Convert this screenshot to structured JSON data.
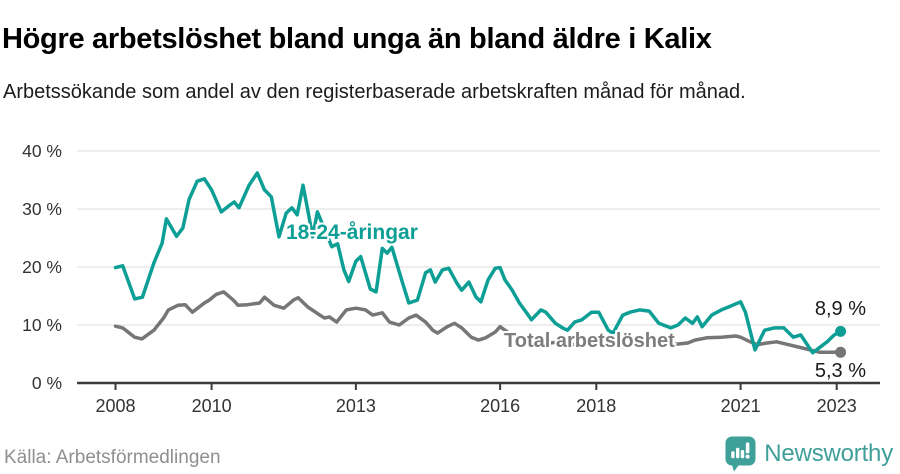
{
  "header": {
    "title": "Högre arbetslöshet bland unga än bland äldre i Kalix",
    "subtitle": "Arbetssökande som andel av den registerbaserade arbetskraften månad för månad."
  },
  "chart_data": {
    "type": "line",
    "title": "Högre arbetslöshet bland unga än bland äldre i Kalix",
    "unit": "%",
    "grid": true,
    "legend": "inline-labels-on-lines",
    "x_axis": {
      "kind": "time-decimal-years-monthly",
      "range": [
        2007.2,
        2023.9
      ],
      "ticks": [
        2008,
        2010,
        2013,
        2016,
        2018,
        2021,
        2023
      ],
      "tick_labels": [
        "2008",
        "2010",
        "2013",
        "2016",
        "2018",
        "2021",
        "2023"
      ]
    },
    "y_axis": {
      "range": [
        0,
        40
      ],
      "ticks": [
        0,
        10,
        20,
        30,
        40
      ],
      "tick_labels": [
        "0 %",
        "10 %",
        "20 %",
        "30 %",
        "40 %"
      ]
    },
    "series": [
      {
        "id": "total",
        "name": "Total arbetslöshet",
        "color": "#767676",
        "end_value": 5.3,
        "end_label": "5,3 %",
        "points": [
          [
            2008.0,
            9.8
          ],
          [
            2008.15,
            9.5
          ],
          [
            2008.4,
            7.9
          ],
          [
            2008.55,
            7.6
          ],
          [
            2008.8,
            9.1
          ],
          [
            2009.0,
            11.2
          ],
          [
            2009.1,
            12.6
          ],
          [
            2009.3,
            13.4
          ],
          [
            2009.45,
            13.5
          ],
          [
            2009.6,
            12.2
          ],
          [
            2009.85,
            13.8
          ],
          [
            2009.95,
            14.3
          ],
          [
            2010.1,
            15.3
          ],
          [
            2010.25,
            15.7
          ],
          [
            2010.45,
            14.3
          ],
          [
            2010.55,
            13.4
          ],
          [
            2010.75,
            13.5
          ],
          [
            2011.0,
            13.8
          ],
          [
            2011.1,
            14.8
          ],
          [
            2011.3,
            13.4
          ],
          [
            2011.5,
            12.9
          ],
          [
            2011.7,
            14.3
          ],
          [
            2011.8,
            14.7
          ],
          [
            2012.0,
            13.1
          ],
          [
            2012.25,
            11.7
          ],
          [
            2012.35,
            11.2
          ],
          [
            2012.45,
            11.4
          ],
          [
            2012.6,
            10.5
          ],
          [
            2012.8,
            12.6
          ],
          [
            2013.0,
            12.9
          ],
          [
            2013.2,
            12.6
          ],
          [
            2013.35,
            11.7
          ],
          [
            2013.55,
            12.1
          ],
          [
            2013.7,
            10.5
          ],
          [
            2013.9,
            10.0
          ],
          [
            2014.1,
            11.2
          ],
          [
            2014.25,
            11.7
          ],
          [
            2014.45,
            10.5
          ],
          [
            2014.6,
            9.1
          ],
          [
            2014.7,
            8.6
          ],
          [
            2014.9,
            9.7
          ],
          [
            2015.05,
            10.3
          ],
          [
            2015.2,
            9.5
          ],
          [
            2015.4,
            7.9
          ],
          [
            2015.55,
            7.4
          ],
          [
            2015.7,
            7.8
          ],
          [
            2015.9,
            8.8
          ],
          [
            2016.0,
            9.7
          ],
          [
            2016.3,
            7.9
          ],
          [
            2016.65,
            7.4
          ],
          [
            2016.85,
            6.6
          ],
          [
            2017.2,
            7.1
          ],
          [
            2017.55,
            6.6
          ],
          [
            2017.8,
            6.9
          ],
          [
            2018.2,
            6.6
          ],
          [
            2018.5,
            6.2
          ],
          [
            2018.9,
            6.6
          ],
          [
            2019.2,
            6.2
          ],
          [
            2019.55,
            6.6
          ],
          [
            2019.9,
            6.9
          ],
          [
            2020.05,
            7.4
          ],
          [
            2020.3,
            7.8
          ],
          [
            2020.6,
            7.9
          ],
          [
            2020.9,
            8.1
          ],
          [
            2021.0,
            7.9
          ],
          [
            2021.2,
            7.1
          ],
          [
            2021.35,
            6.6
          ],
          [
            2021.55,
            6.9
          ],
          [
            2021.75,
            7.1
          ],
          [
            2022.0,
            6.6
          ],
          [
            2022.2,
            6.2
          ],
          [
            2022.45,
            5.7
          ],
          [
            2022.65,
            5.3
          ],
          [
            2022.9,
            5.3
          ],
          [
            2023.08,
            5.3
          ]
        ]
      },
      {
        "id": "young",
        "name": "18-24-åringar",
        "color": "#0d9f95",
        "end_value": 8.9,
        "end_label": "8,9 %",
        "points": [
          [
            2008.0,
            19.9
          ],
          [
            2008.15,
            20.2
          ],
          [
            2008.4,
            14.5
          ],
          [
            2008.56,
            14.8
          ],
          [
            2008.8,
            20.7
          ],
          [
            2008.97,
            24.1
          ],
          [
            2009.06,
            28.3
          ],
          [
            2009.27,
            25.3
          ],
          [
            2009.4,
            26.7
          ],
          [
            2009.53,
            31.6
          ],
          [
            2009.7,
            34.8
          ],
          [
            2009.85,
            35.2
          ],
          [
            2010.0,
            33.3
          ],
          [
            2010.2,
            29.5
          ],
          [
            2010.35,
            30.5
          ],
          [
            2010.47,
            31.2
          ],
          [
            2010.57,
            30.2
          ],
          [
            2010.78,
            34.1
          ],
          [
            2010.95,
            36.2
          ],
          [
            2011.1,
            33.3
          ],
          [
            2011.24,
            32.1
          ],
          [
            2011.4,
            25.2
          ],
          [
            2011.55,
            29.3
          ],
          [
            2011.67,
            30.2
          ],
          [
            2011.78,
            29.0
          ],
          [
            2011.9,
            34.1
          ],
          [
            2012.0,
            29.8
          ],
          [
            2012.1,
            25.2
          ],
          [
            2012.2,
            29.5
          ],
          [
            2012.35,
            26.5
          ],
          [
            2012.5,
            23.5
          ],
          [
            2012.62,
            24.0
          ],
          [
            2012.75,
            19.5
          ],
          [
            2012.85,
            17.5
          ],
          [
            2013.0,
            21.0
          ],
          [
            2013.1,
            21.8
          ],
          [
            2013.3,
            16.2
          ],
          [
            2013.42,
            15.7
          ],
          [
            2013.55,
            23.2
          ],
          [
            2013.65,
            22.4
          ],
          [
            2013.75,
            23.4
          ],
          [
            2013.95,
            17.8
          ],
          [
            2014.1,
            13.8
          ],
          [
            2014.28,
            14.3
          ],
          [
            2014.45,
            19.0
          ],
          [
            2014.55,
            19.5
          ],
          [
            2014.65,
            17.4
          ],
          [
            2014.8,
            19.5
          ],
          [
            2014.93,
            19.8
          ],
          [
            2015.1,
            17.2
          ],
          [
            2015.2,
            16.0
          ],
          [
            2015.35,
            17.4
          ],
          [
            2015.5,
            14.8
          ],
          [
            2015.6,
            14.0
          ],
          [
            2015.75,
            17.8
          ],
          [
            2015.9,
            19.8
          ],
          [
            2016.0,
            19.9
          ],
          [
            2016.1,
            17.8
          ],
          [
            2016.25,
            16.0
          ],
          [
            2016.4,
            13.8
          ],
          [
            2016.55,
            12.1
          ],
          [
            2016.65,
            10.9
          ],
          [
            2016.85,
            12.6
          ],
          [
            2016.95,
            12.2
          ],
          [
            2017.15,
            10.3
          ],
          [
            2017.3,
            9.5
          ],
          [
            2017.4,
            9.1
          ],
          [
            2017.55,
            10.5
          ],
          [
            2017.7,
            10.9
          ],
          [
            2017.9,
            12.2
          ],
          [
            2018.05,
            12.2
          ],
          [
            2018.25,
            9.1
          ],
          [
            2018.35,
            8.6
          ],
          [
            2018.55,
            11.7
          ],
          [
            2018.7,
            12.2
          ],
          [
            2018.9,
            12.6
          ],
          [
            2019.1,
            12.4
          ],
          [
            2019.3,
            10.3
          ],
          [
            2019.55,
            9.5
          ],
          [
            2019.7,
            10.0
          ],
          [
            2019.85,
            11.2
          ],
          [
            2020.0,
            10.3
          ],
          [
            2020.1,
            11.4
          ],
          [
            2020.2,
            9.7
          ],
          [
            2020.4,
            11.7
          ],
          [
            2020.6,
            12.6
          ],
          [
            2020.75,
            13.1
          ],
          [
            2021.0,
            14.0
          ],
          [
            2021.1,
            12.2
          ],
          [
            2021.3,
            5.7
          ],
          [
            2021.5,
            9.1
          ],
          [
            2021.7,
            9.5
          ],
          [
            2021.9,
            9.5
          ],
          [
            2022.1,
            7.9
          ],
          [
            2022.25,
            8.3
          ],
          [
            2022.5,
            5.2
          ],
          [
            2022.8,
            7.1
          ],
          [
            2022.95,
            8.3
          ],
          [
            2023.08,
            8.9
          ]
        ]
      }
    ]
  },
  "footer": {
    "source": "Källa: Arbetsförmedlingen",
    "brand": "Newsworthy"
  }
}
